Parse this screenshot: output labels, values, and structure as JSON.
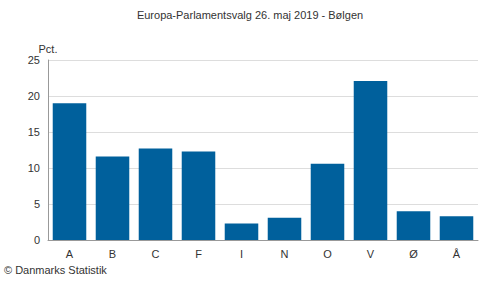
{
  "chart_data": {
    "type": "bar",
    "title": "Europa-Parlamentsvalg 26. maj 2019 - Bølgen",
    "ylabel": "Pct.",
    "annotation": "© Danmarks Statistik",
    "categories": [
      "A",
      "B",
      "C",
      "F",
      "I",
      "N",
      "O",
      "V",
      "Ø",
      "Å"
    ],
    "values": [
      19.0,
      11.6,
      12.7,
      12.3,
      2.3,
      3.1,
      10.6,
      22.1,
      4.0,
      3.3
    ],
    "color": "#00609c",
    "ylim": [
      0,
      25
    ],
    "yticks": [
      0,
      5,
      10,
      15,
      20,
      25
    ],
    "grid": true
  }
}
